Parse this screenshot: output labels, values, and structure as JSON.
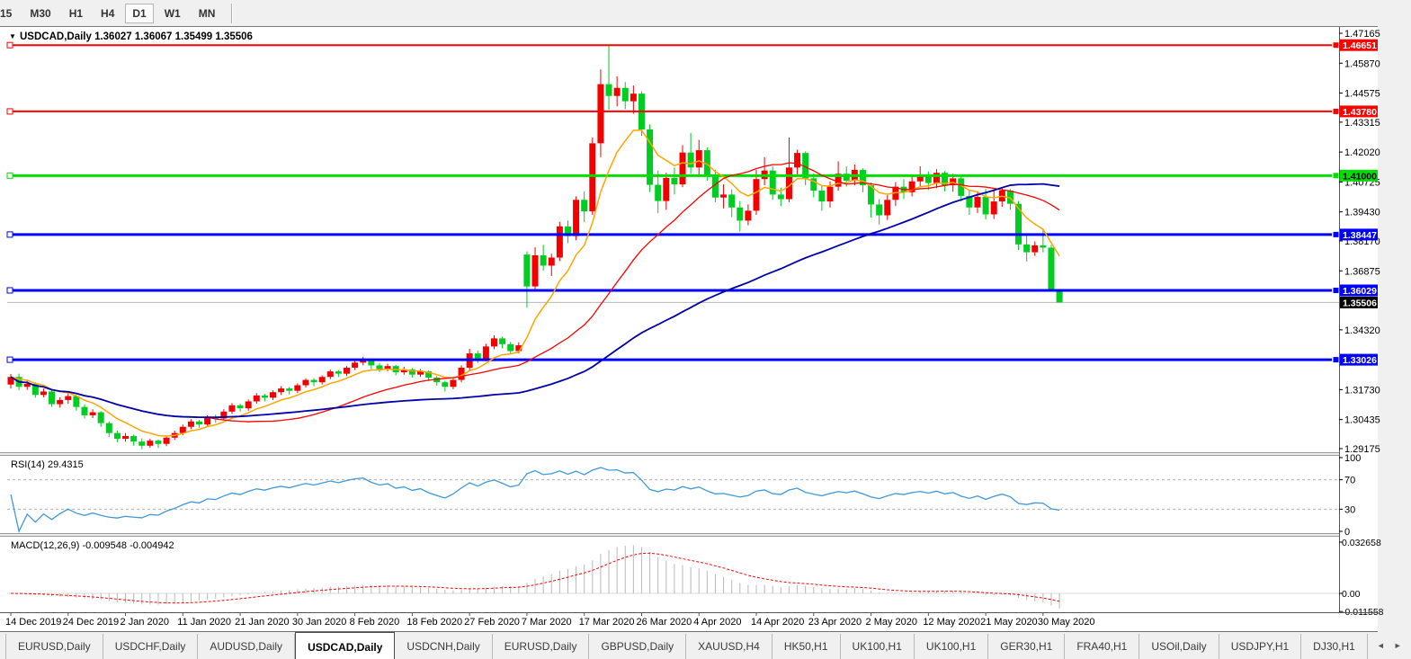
{
  "toolbar": {
    "timeframes": [
      "15",
      "M30",
      "H1",
      "H4",
      "D1",
      "W1",
      "MN"
    ],
    "active": "D1"
  },
  "header": {
    "dropdown_icon": "▼",
    "symbol": "USDCAD,Daily",
    "open": "1.36027",
    "high": "1.36067",
    "low": "1.35499",
    "close": "1.35506"
  },
  "indicators": {
    "rsi": {
      "name": "RSI(14)",
      "value": "29.4315",
      "line_color": "#3f99d8",
      "axis": [
        {
          "v": 100,
          "label": "100"
        },
        {
          "v": 70,
          "label": "70",
          "dashed": true
        },
        {
          "v": 30,
          "label": "30",
          "dashed": true
        },
        {
          "v": 0,
          "label": "0"
        }
      ]
    },
    "macd": {
      "name": "MACD(12,26,9)",
      "main_value": "-0.009548",
      "signal_value": "-0.004942",
      "hist_color": "#b8b8b8",
      "signal_color": "#ff0000",
      "axis": [
        {
          "v": 0.032658,
          "label": "0.032658"
        },
        {
          "v": 0,
          "label": "0.00"
        },
        {
          "v": -0.011558,
          "label": "-0.011558"
        }
      ]
    }
  },
  "date_axis": [
    "14 Dec 2019",
    "24 Dec 2019",
    "2 Jan 2020",
    "11 Jan 2020",
    "21 Jan 2020",
    "30 Jan 2020",
    "8 Feb 2020",
    "18 Feb 2020",
    "27 Feb 2020",
    "7 Mar 2020",
    "17 Mar 2020",
    "26 Mar 2020",
    "4 Apr 2020",
    "14 Apr 2020",
    "23 Apr 2020",
    "2 May 2020",
    "12 May 2020",
    "21 May 2020",
    "30 May 2020"
  ],
  "tabs": {
    "items": [
      {
        "label": "EURUSD,Daily",
        "active": false
      },
      {
        "label": "USDCHF,Daily",
        "active": false
      },
      {
        "label": "AUDUSD,Daily",
        "active": false
      },
      {
        "label": "USDCAD,Daily",
        "active": true
      },
      {
        "label": "USDCNH,Daily",
        "active": false
      },
      {
        "label": "EURUSD,Daily",
        "active": false
      },
      {
        "label": "GBPUSD,Daily",
        "active": false
      },
      {
        "label": "XAUUSD,H4",
        "active": false
      },
      {
        "label": "HK50,H1",
        "active": false
      },
      {
        "label": "UK100,H1",
        "active": false
      },
      {
        "label": "UK100,H1",
        "active": false
      },
      {
        "label": "GER30,H1",
        "active": false
      },
      {
        "label": "FRA40,H1",
        "active": false
      },
      {
        "label": "USOil,Daily",
        "active": false
      },
      {
        "label": "USDJPY,H1",
        "active": false
      },
      {
        "label": "DJ30,H1",
        "active": false
      }
    ],
    "scroll_left": "◄",
    "scroll_right": "►"
  },
  "chart_data": {
    "type": "candlestick",
    "symbol": "USDCAD",
    "timeframe": "Daily",
    "bull_color": "#f20000",
    "bear_color": "#00cc22",
    "price_range_top": 1.47165,
    "price_range_bottom": 1.29175,
    "bars_per_date_label": 7,
    "price_ticks": [
      {
        "p": 1.47165,
        "label": "1.47165"
      },
      {
        "p": 1.4587,
        "label": "1.45870"
      },
      {
        "p": 1.44575,
        "label": "1.44575"
      },
      {
        "p": 1.43315,
        "label": "1.43315"
      },
      {
        "p": 1.4202,
        "label": "1.42020"
      },
      {
        "p": 1.40725,
        "label": "1.40725"
      },
      {
        "p": 1.3943,
        "label": "1.39430"
      },
      {
        "p": 1.3817,
        "label": "1.38170"
      },
      {
        "p": 1.36875,
        "label": "1.36875"
      },
      {
        "p": 1.3432,
        "label": "1.34320"
      },
      {
        "p": 1.3173,
        "label": "1.31730"
      },
      {
        "p": 1.30435,
        "label": "1.30435"
      },
      {
        "p": 1.29175,
        "label": "1.29175"
      }
    ],
    "hlines": [
      {
        "price": 1.46651,
        "label": "1.46651",
        "color": "#ff0000",
        "width": 2,
        "label_text_color": "#ffffff"
      },
      {
        "price": 1.4378,
        "label": "1.43780",
        "color": "#ff0000",
        "width": 2,
        "label_text_color": "#ffffff"
      },
      {
        "price": 1.41,
        "label": "1.41000",
        "color": "#00dd00",
        "width": 3,
        "label_text_color": "#000000"
      },
      {
        "price": 1.38447,
        "label": "1.38447",
        "color": "#0000ff",
        "width": 3,
        "label_text_color": "#ffffff"
      },
      {
        "price": 1.36029,
        "label": "1.36029",
        "color": "#0000ff",
        "width": 3,
        "label_text_color": "#ffffff"
      },
      {
        "price": 1.33026,
        "label": "1.33026",
        "color": "#0000ff",
        "width": 3,
        "label_text_color": "#ffffff"
      }
    ],
    "current_price": {
      "value": 1.35506,
      "label": "1.35506",
      "line_color": "#b8b8b8",
      "box_color": "#000000",
      "text_color": "#ffffff"
    },
    "ma": [
      {
        "type": "ema",
        "period": 8,
        "color": "#ffa500",
        "width": 1.5,
        "name": "ma-fast-orange"
      },
      {
        "type": "sma",
        "period": 25,
        "color": "#ff0000",
        "width": 1.3,
        "name": "ma-mid-red"
      },
      {
        "type": "sma",
        "period": 60,
        "color": "#0000a8",
        "width": 1.8,
        "name": "ma-slow-navy"
      }
    ],
    "candles": [
      [
        1.3195,
        1.324,
        1.3178,
        1.3228
      ],
      [
        1.3228,
        1.3242,
        1.317,
        1.3185
      ],
      [
        1.3185,
        1.3212,
        1.3172,
        1.3198
      ],
      [
        1.3198,
        1.3205,
        1.3138,
        1.315
      ],
      [
        1.315,
        1.3178,
        1.314,
        1.3165
      ],
      [
        1.3165,
        1.3172,
        1.3098,
        1.311
      ],
      [
        1.311,
        1.314,
        1.3095,
        1.3128
      ],
      [
        1.3128,
        1.3158,
        1.3112,
        1.3145
      ],
      [
        1.3145,
        1.315,
        1.3082,
        1.3098
      ],
      [
        1.3098,
        1.311,
        1.3048,
        1.3062
      ],
      [
        1.3062,
        1.3088,
        1.305,
        1.3075
      ],
      [
        1.3075,
        1.308,
        1.3012,
        1.3028
      ],
      [
        1.3028,
        1.3035,
        1.2968,
        1.2985
      ],
      [
        1.2985,
        1.2995,
        1.2945,
        1.296
      ],
      [
        1.296,
        1.2985,
        1.2948,
        1.2972
      ],
      [
        1.2972,
        1.2978,
        1.293,
        1.2948
      ],
      [
        1.2948,
        1.2962,
        1.2915,
        1.293
      ],
      [
        1.293,
        1.296,
        1.2922,
        1.2952
      ],
      [
        1.2952,
        1.2958,
        1.292,
        1.2938
      ],
      [
        1.2938,
        1.2972,
        1.2928,
        1.2965
      ],
      [
        1.2965,
        1.2995,
        1.2955,
        1.2985
      ],
      [
        1.2985,
        1.3022,
        1.2975,
        1.3012
      ],
      [
        1.3012,
        1.3045,
        1.3002,
        1.3035
      ],
      [
        1.3035,
        1.3042,
        1.3008,
        1.3022
      ],
      [
        1.3022,
        1.3062,
        1.3012,
        1.3055
      ],
      [
        1.3055,
        1.3065,
        1.303,
        1.3048
      ],
      [
        1.3048,
        1.3088,
        1.304,
        1.3078
      ],
      [
        1.3078,
        1.3115,
        1.3068,
        1.3105
      ],
      [
        1.3105,
        1.3112,
        1.3078,
        1.3092
      ],
      [
        1.3092,
        1.313,
        1.3082,
        1.3122
      ],
      [
        1.3122,
        1.3158,
        1.3112,
        1.3148
      ],
      [
        1.3148,
        1.3155,
        1.3122,
        1.3138
      ],
      [
        1.3138,
        1.317,
        1.3128,
        1.3162
      ],
      [
        1.3162,
        1.3188,
        1.315,
        1.3178
      ],
      [
        1.3178,
        1.3185,
        1.3152,
        1.3168
      ],
      [
        1.3168,
        1.32,
        1.3158,
        1.3192
      ],
      [
        1.3192,
        1.3222,
        1.3182,
        1.3215
      ],
      [
        1.3215,
        1.3222,
        1.3188,
        1.3205
      ],
      [
        1.3205,
        1.3235,
        1.3195,
        1.3228
      ],
      [
        1.3228,
        1.326,
        1.3218,
        1.3252
      ],
      [
        1.3252,
        1.3258,
        1.3228,
        1.3242
      ],
      [
        1.3242,
        1.3275,
        1.3232,
        1.3268
      ],
      [
        1.3268,
        1.3298,
        1.3258,
        1.329
      ],
      [
        1.329,
        1.3315,
        1.3278,
        1.3302
      ],
      [
        1.3302,
        1.3308,
        1.3262,
        1.3278
      ],
      [
        1.3278,
        1.3288,
        1.3248,
        1.3262
      ],
      [
        1.3262,
        1.3285,
        1.3252,
        1.3275
      ],
      [
        1.3275,
        1.328,
        1.3235,
        1.3248
      ],
      [
        1.3248,
        1.3272,
        1.3238,
        1.326
      ],
      [
        1.326,
        1.3266,
        1.3225,
        1.3238
      ],
      [
        1.3238,
        1.3262,
        1.3228,
        1.3252
      ],
      [
        1.3252,
        1.3256,
        1.321,
        1.3225
      ],
      [
        1.3225,
        1.3232,
        1.319,
        1.3205
      ],
      [
        1.3205,
        1.3212,
        1.3165,
        1.3185
      ],
      [
        1.3185,
        1.3225,
        1.3175,
        1.3215
      ],
      [
        1.3215,
        1.3278,
        1.3205,
        1.3268
      ],
      [
        1.3268,
        1.335,
        1.3258,
        1.333
      ],
      [
        1.333,
        1.3342,
        1.3288,
        1.3305
      ],
      [
        1.3305,
        1.3372,
        1.3295,
        1.336
      ],
      [
        1.336,
        1.3408,
        1.3348,
        1.3395
      ],
      [
        1.3395,
        1.3402,
        1.3352,
        1.337
      ],
      [
        1.337,
        1.338,
        1.3325,
        1.334
      ],
      [
        1.334,
        1.3378,
        1.333,
        1.3365
      ],
      [
        1.3758,
        1.3772,
        1.3528,
        1.362
      ],
      [
        1.362,
        1.379,
        1.3608,
        1.3755
      ],
      [
        1.3755,
        1.38,
        1.3688,
        1.371
      ],
      [
        1.371,
        1.3762,
        1.3665,
        1.3745
      ],
      [
        1.3745,
        1.39,
        1.373,
        1.388
      ],
      [
        1.388,
        1.3905,
        1.3808,
        1.3838
      ],
      [
        1.3838,
        1.401,
        1.382,
        1.3995
      ],
      [
        1.3995,
        1.4032,
        1.3898,
        1.3945
      ],
      [
        1.3945,
        1.4265,
        1.393,
        1.424
      ],
      [
        1.424,
        1.456,
        1.418,
        1.4496
      ],
      [
        1.4496,
        1.4668,
        1.4385,
        1.4445
      ],
      [
        1.4445,
        1.453,
        1.44,
        1.448
      ],
      [
        1.448,
        1.4505,
        1.4388,
        1.4422
      ],
      [
        1.4422,
        1.449,
        1.4368,
        1.4455
      ],
      [
        1.4455,
        1.4465,
        1.4272,
        1.43
      ],
      [
        1.43,
        1.4322,
        1.4028,
        1.406
      ],
      [
        1.406,
        1.4122,
        1.3938,
        1.399
      ],
      [
        1.399,
        1.4112,
        1.3952,
        1.409
      ],
      [
        1.409,
        1.4135,
        1.4018,
        1.4062
      ],
      [
        1.4062,
        1.4232,
        1.405,
        1.42
      ],
      [
        1.42,
        1.4285,
        1.4108,
        1.4135
      ],
      [
        1.4135,
        1.4255,
        1.4105,
        1.421
      ],
      [
        1.421,
        1.4222,
        1.4078,
        1.4098
      ],
      [
        1.4098,
        1.4125,
        1.3985,
        1.4005
      ],
      [
        1.4005,
        1.4062,
        1.3958,
        1.4018
      ],
      [
        1.4018,
        1.404,
        1.392,
        1.3962
      ],
      [
        1.3962,
        1.399,
        1.3858,
        1.3905
      ],
      [
        1.3905,
        1.3975,
        1.3885,
        1.3948
      ],
      [
        1.3948,
        1.4125,
        1.393,
        1.4085
      ],
      [
        1.4085,
        1.418,
        1.4058,
        1.4122
      ],
      [
        1.4122,
        1.414,
        1.3995,
        1.4018
      ],
      [
        1.4018,
        1.4048,
        1.3968,
        1.3998
      ],
      [
        1.3998,
        1.4265,
        1.3985,
        1.4135
      ],
      [
        1.4135,
        1.4212,
        1.4098,
        1.4198
      ],
      [
        1.4198,
        1.4205,
        1.4058,
        1.4088
      ],
      [
        1.4088,
        1.411,
        1.4006,
        1.4035
      ],
      [
        1.4035,
        1.4058,
        1.3948,
        1.3988
      ],
      [
        1.3988,
        1.4075,
        1.3962,
        1.4052
      ],
      [
        1.4052,
        1.4162,
        1.4035,
        1.4108
      ],
      [
        1.4108,
        1.414,
        1.4052,
        1.4078
      ],
      [
        1.4078,
        1.4148,
        1.4058,
        1.4125
      ],
      [
        1.4125,
        1.4132,
        1.4028,
        1.4058
      ],
      [
        1.4058,
        1.407,
        1.3918,
        1.3975
      ],
      [
        1.3975,
        1.3998,
        1.3888,
        1.3928
      ],
      [
        1.3928,
        1.4015,
        1.3908,
        1.3995
      ],
      [
        1.3995,
        1.4072,
        1.3968,
        1.4052
      ],
      [
        1.4052,
        1.4085,
        1.3998,
        1.4028
      ],
      [
        1.4028,
        1.4098,
        1.401,
        1.4075
      ],
      [
        1.4075,
        1.414,
        1.4052,
        1.4102
      ],
      [
        1.4102,
        1.4118,
        1.4038,
        1.4068
      ],
      [
        1.4068,
        1.4128,
        1.4046,
        1.4112
      ],
      [
        1.4112,
        1.412,
        1.4032,
        1.4058
      ],
      [
        1.4058,
        1.4108,
        1.403,
        1.4088
      ],
      [
        1.4088,
        1.4095,
        1.3988,
        1.4012
      ],
      [
        1.4012,
        1.4035,
        1.393,
        1.3962
      ],
      [
        1.3962,
        1.4028,
        1.3938,
        1.4008
      ],
      [
        1.4008,
        1.4042,
        1.391,
        1.3932
      ],
      [
        1.3932,
        1.404,
        1.3912,
        1.3988
      ],
      [
        1.3988,
        1.4048,
        1.3965,
        1.4035
      ],
      [
        1.4035,
        1.4042,
        1.3952,
        1.3978
      ],
      [
        1.3978,
        1.399,
        1.3778,
        1.3802
      ],
      [
        1.3802,
        1.3845,
        1.3728,
        1.3768
      ],
      [
        1.3768,
        1.3815,
        1.3752,
        1.3798
      ],
      [
        1.3798,
        1.3868,
        1.3768,
        1.3788
      ],
      [
        1.3788,
        1.38,
        1.3598,
        1.3605
      ],
      [
        1.36027,
        1.36067,
        1.35499,
        1.35506
      ]
    ]
  },
  "colors": {
    "bg": "#ffffff",
    "chrome": "#f0f0f0",
    "border": "#808080",
    "text": "#000000"
  }
}
